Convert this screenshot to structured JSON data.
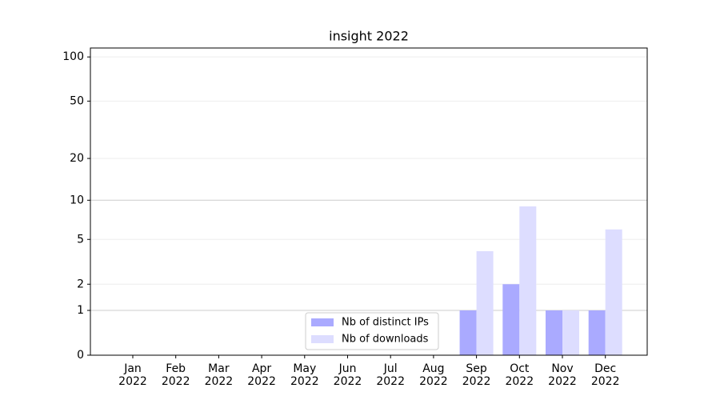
{
  "chart_data": {
    "type": "bar",
    "title": "insight 2022",
    "categories": [
      "Jan\n2022",
      "Feb\n2022",
      "Mar\n2022",
      "Apr\n2022",
      "May\n2022",
      "Jun\n2022",
      "Jul\n2022",
      "Aug\n2022",
      "Sep\n2022",
      "Oct\n2022",
      "Nov\n2022",
      "Dec\n2022"
    ],
    "series": [
      {
        "name": "Nb of distinct IPs",
        "color": "#aaaaff",
        "values": [
          0,
          0,
          0,
          0,
          0,
          0,
          0,
          0,
          1,
          2,
          1,
          1
        ]
      },
      {
        "name": "Nb of downloads",
        "color": "#ddddff",
        "values": [
          0,
          0,
          0,
          0,
          0,
          0,
          0,
          0,
          4,
          9,
          1,
          6
        ]
      }
    ],
    "yscale": "log1p",
    "ylim": [
      0,
      115
    ],
    "yticks": [
      0,
      1,
      2,
      5,
      10,
      20,
      50,
      100
    ],
    "grid": true,
    "legend": "lower center"
  }
}
